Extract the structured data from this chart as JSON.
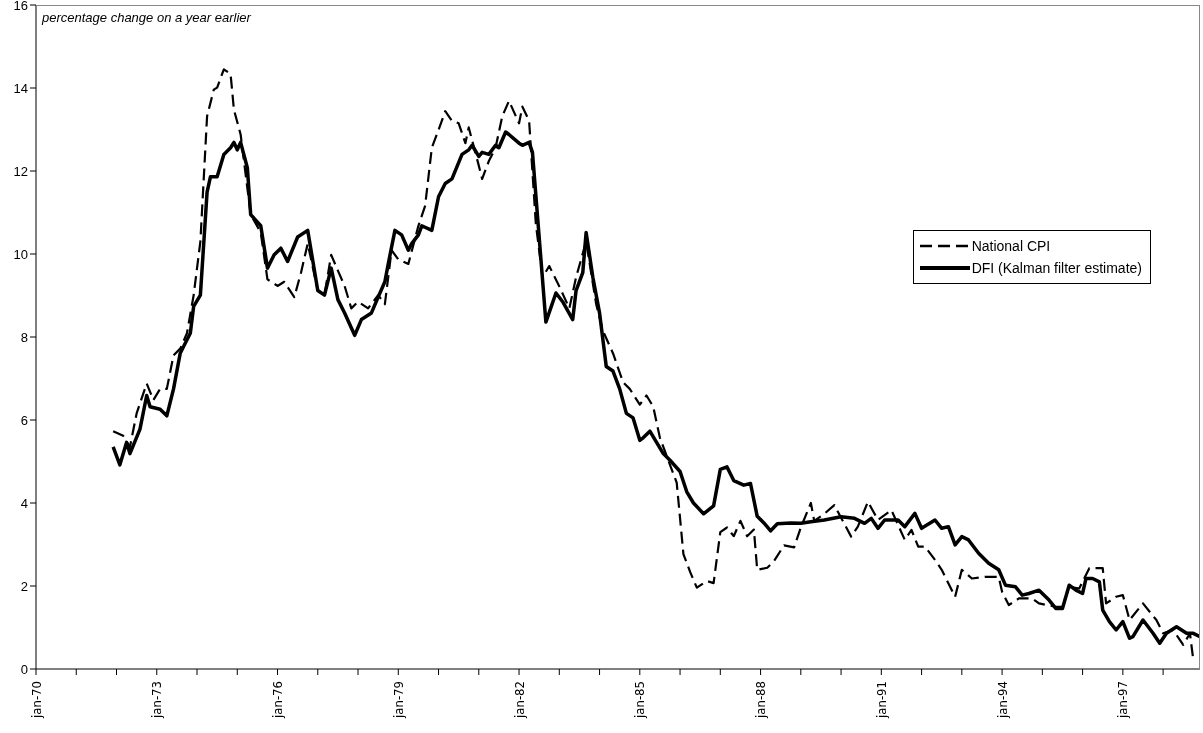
{
  "chart_data": {
    "type": "line",
    "ylabel": "percentage change on a year earlier",
    "xlim": [
      "1970-01",
      "1998-12"
    ],
    "xticks": [
      {
        "value": "1970-01",
        "label": "jan-70"
      },
      {
        "value": "1971-01",
        "label": null
      },
      {
        "value": "1972-01",
        "label": null
      },
      {
        "value": "1973-01",
        "label": "jan-73"
      },
      {
        "value": "1974-01",
        "label": null
      },
      {
        "value": "1975-01",
        "label": null
      },
      {
        "value": "1976-01",
        "label": "jan-76"
      },
      {
        "value": "1977-01",
        "label": null
      },
      {
        "value": "1978-01",
        "label": null
      },
      {
        "value": "1979-01",
        "label": "jan-79"
      },
      {
        "value": "1980-01",
        "label": null
      },
      {
        "value": "1981-01",
        "label": null
      },
      {
        "value": "1982-01",
        "label": "jan-82"
      },
      {
        "value": "1983-01",
        "label": null
      },
      {
        "value": "1984-01",
        "label": null
      },
      {
        "value": "1985-01",
        "label": "jan-85"
      },
      {
        "value": "1986-01",
        "label": null
      },
      {
        "value": "1987-01",
        "label": null
      },
      {
        "value": "1988-01",
        "label": "jan-88"
      },
      {
        "value": "1989-01",
        "label": null
      },
      {
        "value": "1990-01",
        "label": null
      },
      {
        "value": "1991-01",
        "label": "jan-91"
      },
      {
        "value": "1992-01",
        "label": null
      },
      {
        "value": "1993-01",
        "label": null
      },
      {
        "value": "1994-01",
        "label": "jan-94"
      },
      {
        "value": "1995-01",
        "label": null
      },
      {
        "value": "1996-01",
        "label": null
      },
      {
        "value": "1997-01",
        "label": "jan-97"
      },
      {
        "value": "1998-01",
        "label": null
      }
    ],
    "ylim": [
      0,
      16
    ],
    "yticks": [
      0,
      2,
      4,
      6,
      8,
      10,
      12,
      14,
      16
    ],
    "legend": "right",
    "marker": "none",
    "series": [
      {
        "name": "National CPI",
        "color": "#000000",
        "line_style": "dashed",
        "x": [
          "1971-12",
          "1972-03",
          "1972-05",
          "1972-07",
          "1972-10",
          "1972-12",
          "1973-02",
          "1973-04",
          "1973-06",
          "1973-08",
          "1973-10",
          "1973-12",
          "1974-02",
          "1974-04",
          "1974-06",
          "1974-07",
          "1974-09",
          "1974-11",
          "1974-12",
          "1975-02",
          "1975-05",
          "1975-08",
          "1975-10",
          "1976-01",
          "1976-03",
          "1976-06",
          "1976-08",
          "1976-10",
          "1977-01",
          "1977-03",
          "1977-05",
          "1977-07",
          "1977-09",
          "1977-11",
          "1978-01",
          "1978-04",
          "1978-07",
          "1978-09",
          "1978-11",
          "1979-01",
          "1979-04",
          "1979-07",
          "1979-09",
          "1979-11",
          "1980-01",
          "1980-03",
          "1980-05",
          "1980-07",
          "1980-09",
          "1980-10",
          "1981-01",
          "1981-02",
          "1981-04",
          "1981-06",
          "1981-08",
          "1981-10",
          "1982-01",
          "1982-02",
          "1982-04",
          "1982-06",
          "1982-08",
          "1982-10",
          "1983-01",
          "1983-04",
          "1983-06",
          "1983-09",
          "1983-12",
          "1984-02",
          "1984-05",
          "1984-08",
          "1984-10",
          "1985-01",
          "1985-03",
          "1985-05",
          "1985-07",
          "1985-10",
          "1985-12",
          "1986-02",
          "1986-04",
          "1986-06",
          "1986-09",
          "1986-11",
          "1987-01",
          "1987-03",
          "1987-05",
          "1987-07",
          "1987-09",
          "1987-11",
          "1987-12",
          "1988-03",
          "1988-05",
          "1988-08",
          "1988-11",
          "1989-01",
          "1989-04",
          "1989-05",
          "1989-08",
          "1989-11",
          "1990-04",
          "1990-06",
          "1990-09",
          "1990-12",
          "1991-04",
          "1991-08",
          "1991-10",
          "1991-12",
          "1992-02",
          "1992-05",
          "1992-07",
          "1992-11",
          "1993-01",
          "1993-04",
          "1993-08",
          "1993-12",
          "1994-01",
          "1994-03",
          "1994-06",
          "1994-10",
          "1994-12",
          "1995-05",
          "1995-07",
          "1995-09",
          "1995-12",
          "1996-03",
          "1996-07",
          "1996-08",
          "1996-11",
          "1997-01",
          "1997-03",
          "1997-07",
          "1997-11",
          "1998-01",
          "1998-04",
          "1998-07",
          "1998-09",
          "1998-10"
        ],
        "values": [
          5.73,
          5.62,
          5.35,
          6.16,
          6.88,
          6.48,
          6.75,
          6.75,
          7.56,
          7.72,
          8.09,
          9.01,
          10.3,
          13.32,
          13.96,
          14.01,
          14.45,
          14.34,
          13.48,
          12.88,
          10.95,
          10.52,
          9.39,
          9.23,
          9.33,
          8.96,
          9.55,
          10.25,
          9.12,
          9.01,
          9.98,
          9.6,
          9.23,
          8.69,
          8.85,
          8.69,
          9.01,
          8.79,
          10.09,
          9.87,
          9.76,
          10.68,
          11.16,
          12.56,
          12.99,
          13.44,
          13.21,
          13.15,
          12.67,
          13.05,
          12.13,
          11.81,
          12.24,
          12.56,
          13.32,
          13.69,
          13.15,
          13.55,
          13.21,
          10.73,
          9.44,
          9.71,
          9.22,
          8.69,
          9.44,
          10.3,
          8.79,
          8.15,
          7.61,
          6.91,
          6.75,
          6.37,
          6.59,
          6.32,
          5.57,
          4.92,
          4.49,
          2.77,
          2.34,
          1.96,
          2.12,
          2.07,
          3.3,
          3.41,
          3.2,
          3.57,
          3.2,
          3.36,
          2.39,
          2.44,
          2.6,
          2.98,
          2.93,
          3.41,
          4.0,
          3.57,
          3.74,
          3.95,
          3.19,
          3.43,
          4.03,
          3.59,
          3.83,
          3.11,
          3.35,
          2.95,
          2.95,
          2.63,
          2.39,
          1.74,
          2.39,
          2.18,
          2.22,
          2.22,
          1.86,
          1.54,
          1.7,
          1.7,
          1.58,
          1.5,
          1.5,
          1.98,
          1.94,
          2.43,
          2.43,
          1.58,
          1.74,
          1.78,
          1.18,
          1.58,
          1.18,
          0.86,
          0.94,
          0.58,
          0.86,
          0.22
        ]
      },
      {
        "name": "DFI (Kalman filter estimate)",
        "color": "#000000",
        "line_style": "solid",
        "x": [
          "1971-12",
          "1972-02",
          "1972-04",
          "1972-05",
          "1972-08",
          "1972-10",
          "1972-11",
          "1973-02",
          "1973-04",
          "1973-06",
          "1973-08",
          "1973-09",
          "1973-11",
          "1973-12",
          "1974-02",
          "1974-04",
          "1974-05",
          "1974-07",
          "1974-09",
          "1974-11",
          "1974-12",
          "1975-01",
          "1975-02",
          "1975-04",
          "1975-05",
          "1975-08",
          "1975-10",
          "1975-12",
          "1976-02",
          "1976-04",
          "1976-07",
          "1976-10",
          "1977-01",
          "1977-03",
          "1977-05",
          "1977-07",
          "1977-09",
          "1977-12",
          "1978-02",
          "1978-05",
          "1978-07",
          "1978-09",
          "1978-10",
          "1978-12",
          "1979-02",
          "1979-04",
          "1979-05",
          "1979-07",
          "1979-08",
          "1979-11",
          "1980-01",
          "1980-03",
          "1980-05",
          "1980-08",
          "1980-10",
          "1980-11",
          "1981-01",
          "1981-02",
          "1981-04",
          "1981-06",
          "1981-07",
          "1981-09",
          "1981-10",
          "1982-01",
          "1982-02",
          "1982-04",
          "1982-05",
          "1982-09",
          "1982-12",
          "1983-02",
          "1983-05",
          "1983-06",
          "1983-08",
          "1983-09",
          "1983-11",
          "1984-01",
          "1984-03",
          "1984-05",
          "1984-07",
          "1984-09",
          "1984-11",
          "1985-01",
          "1985-02",
          "1985-04",
          "1985-06",
          "1985-08",
          "1985-10",
          "1986-01",
          "1986-03",
          "1986-05",
          "1986-08",
          "1986-11",
          "1987-01",
          "1987-03",
          "1987-05",
          "1987-08",
          "1987-10",
          "1987-12",
          "1988-02",
          "1988-04",
          "1988-06",
          "1988-10",
          "1989-01",
          "1989-04",
          "1989-08",
          "1990-01",
          "1990-05",
          "1990-08",
          "1990-10",
          "1990-12",
          "1991-02",
          "1991-06",
          "1991-08",
          "1991-11",
          "1992-01",
          "1992-05",
          "1992-07",
          "1992-09",
          "1992-11",
          "1993-01",
          "1993-03",
          "1993-06",
          "1993-09",
          "1993-12",
          "1994-02",
          "1994-05",
          "1994-07",
          "1994-09",
          "1994-12",
          "1995-03",
          "1995-05",
          "1995-07",
          "1995-09",
          "1995-11",
          "1996-01",
          "1996-02",
          "1996-04",
          "1996-06",
          "1996-07",
          "1996-09",
          "1996-11",
          "1997-01",
          "1997-03",
          "1997-04",
          "1997-07",
          "1997-10",
          "1997-12",
          "1998-02",
          "1998-05",
          "1998-08",
          "1998-10",
          "1998-12"
        ],
        "values": [
          5.35,
          4.92,
          5.46,
          5.19,
          5.78,
          6.59,
          6.32,
          6.26,
          6.1,
          6.75,
          7.61,
          7.77,
          8.09,
          8.74,
          9.01,
          11.49,
          11.86,
          11.86,
          12.4,
          12.56,
          12.69,
          12.51,
          12.69,
          12.08,
          10.95,
          10.68,
          9.66,
          9.98,
          10.14,
          9.82,
          10.41,
          10.57,
          9.12,
          9.01,
          9.66,
          8.9,
          8.58,
          8.04,
          8.42,
          8.58,
          8.96,
          9.33,
          9.76,
          10.57,
          10.46,
          10.09,
          10.25,
          10.46,
          10.68,
          10.57,
          11.38,
          11.7,
          11.81,
          12.4,
          12.51,
          12.62,
          12.35,
          12.45,
          12.4,
          12.62,
          12.56,
          12.94,
          12.88,
          12.67,
          12.62,
          12.69,
          12.45,
          8.36,
          9.06,
          8.85,
          8.42,
          9.12,
          9.55,
          10.52,
          9.44,
          8.58,
          7.29,
          7.18,
          6.75,
          6.16,
          6.05,
          5.51,
          5.57,
          5.73,
          5.46,
          5.19,
          5.03,
          4.76,
          4.27,
          4.0,
          3.74,
          3.93,
          4.81,
          4.87,
          4.54,
          4.43,
          4.47,
          3.68,
          3.52,
          3.33,
          3.5,
          3.52,
          3.51,
          3.55,
          3.59,
          3.67,
          3.63,
          3.51,
          3.63,
          3.39,
          3.59,
          3.59,
          3.43,
          3.75,
          3.39,
          3.59,
          3.39,
          3.43,
          2.99,
          3.19,
          3.11,
          2.79,
          2.55,
          2.39,
          2.02,
          1.98,
          1.78,
          1.82,
          1.9,
          1.66,
          1.46,
          1.46,
          2.02,
          1.9,
          1.82,
          2.18,
          2.18,
          2.1,
          1.42,
          1.14,
          0.94,
          1.14,
          0.74,
          0.78,
          1.18,
          0.86,
          0.62,
          0.86,
          1.02,
          0.86,
          0.86,
          0.78
        ]
      }
    ]
  }
}
